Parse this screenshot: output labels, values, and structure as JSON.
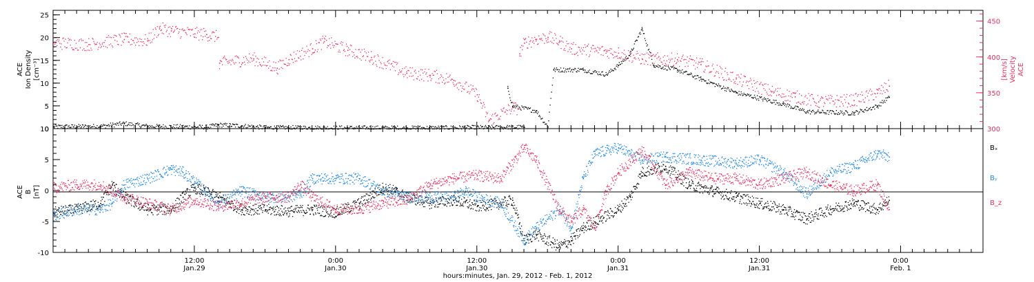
{
  "colors": {
    "black": "#000000",
    "pink": "#e8305c",
    "blue": "#1e88e5"
  },
  "x_axis": {
    "label": "hours:minutes, Jan. 29, 2012 - Feb. 1, 2012",
    "ticks": [
      {
        "h": 12,
        "time": "12:00",
        "day": "Jan.29"
      },
      {
        "h": 24,
        "time": "0:00",
        "day": "Jan.30"
      },
      {
        "h": 36,
        "time": "12:00",
        "day": "Jan.30"
      },
      {
        "h": 48,
        "time": "0:00",
        "day": "Jan.31"
      },
      {
        "h": 60,
        "time": "12:00",
        "day": "Jan.31"
      },
      {
        "h": 72,
        "time": "0:00",
        "day": "Feb. 1"
      }
    ]
  },
  "chart_data": [
    {
      "type": "scatter",
      "panel": "top",
      "ylabel_left": [
        "ACE",
        "Ion Density",
        "[cm⁻³]"
      ],
      "ylabel_right": [
        "ACE",
        "Velocity",
        "[km/s]"
      ],
      "xlim_hours": [
        0,
        79
      ],
      "ylim_left": [
        0,
        26
      ],
      "ylim_right": [
        300,
        465
      ],
      "left_ticks": [
        "0",
        "5",
        "10",
        "15",
        "20",
        "25"
      ],
      "right_ticks": [
        "300",
        "350",
        "400",
        "450"
      ],
      "series": [
        {
          "axis": "left",
          "color": "#000000",
          "points": [
            [
              0,
              0.5
            ],
            [
              4,
              0.6
            ],
            [
              6,
              1.2
            ],
            [
              8,
              0.6
            ],
            [
              13,
              0.4
            ],
            [
              14,
              0.9
            ],
            [
              16,
              0.7
            ],
            [
              18,
              0.3
            ],
            [
              30,
              0.2
            ],
            [
              40,
              0.4
            ],
            [
              38.5,
              0.5
            ],
            [
              38.6,
              9
            ],
            [
              39,
              5
            ],
            [
              41,
              4
            ],
            [
              42,
              0.5
            ],
            [
              42.5,
              13
            ],
            [
              45,
              13
            ],
            [
              47,
              12
            ],
            [
              48,
              14
            ],
            [
              49,
              16.5
            ],
            [
              50,
              22
            ],
            [
              51,
              14
            ],
            [
              53,
              13
            ],
            [
              55,
              11
            ],
            [
              58,
              8
            ],
            [
              62,
              5.5
            ],
            [
              64,
              3.8
            ],
            [
              68,
              3.5
            ],
            [
              70,
              5
            ],
            [
              71,
              7
            ]
          ]
        },
        {
          "axis": "right",
          "color": "#e8305c",
          "points": [
            [
              0,
              420
            ],
            [
              3,
              418
            ],
            [
              6,
              425
            ],
            [
              8,
              423
            ],
            [
              9,
              440
            ],
            [
              10,
              437
            ],
            [
              12,
              433
            ],
            [
              13,
              432
            ],
            [
              14,
              428
            ],
            [
              14.1,
              392
            ],
            [
              17,
              398
            ],
            [
              19,
              385
            ],
            [
              20,
              397
            ],
            [
              22,
              412
            ],
            [
              23,
              422
            ],
            [
              25,
              410
            ],
            [
              27,
              400
            ],
            [
              30,
              378
            ],
            [
              32,
              375
            ],
            [
              34,
              368
            ],
            [
              36,
              348
            ],
            [
              37,
              312
            ],
            [
              39,
              330
            ],
            [
              39.5,
              328
            ],
            [
              39.6,
              405
            ],
            [
              40,
              420
            ],
            [
              41,
              425
            ],
            [
              42,
              428
            ],
            [
              43,
              422
            ],
            [
              44,
              412
            ],
            [
              47,
              408
            ],
            [
              48,
              406
            ],
            [
              50,
              398
            ],
            [
              53,
              397
            ],
            [
              55,
              390
            ],
            [
              58,
              370
            ],
            [
              61,
              352
            ],
            [
              63,
              345
            ],
            [
              65,
              338
            ],
            [
              68,
              340
            ],
            [
              70,
              350
            ],
            [
              71,
              360
            ]
          ]
        }
      ]
    },
    {
      "type": "scatter",
      "panel": "bottom",
      "ylabel_left": [
        "ACE",
        "B",
        "[nT]"
      ],
      "xlim_hours": [
        0,
        79
      ],
      "ylim": [
        -10,
        10
      ],
      "left_ticks": [
        "-10",
        "-5",
        "0",
        "5",
        "10"
      ],
      "series": [
        {
          "name": "Bₓ",
          "color": "#000000",
          "points": [
            [
              0,
              -3.5
            ],
            [
              2,
              -3
            ],
            [
              4,
              -2
            ],
            [
              5,
              1
            ],
            [
              6,
              -1
            ],
            [
              8,
              -3
            ],
            [
              10,
              -3
            ],
            [
              11,
              -1
            ],
            [
              12,
              0.5
            ],
            [
              14,
              -1
            ],
            [
              16,
              -3
            ],
            [
              18,
              -3
            ],
            [
              20,
              -3.3
            ],
            [
              22,
              -3
            ],
            [
              24,
              -3.5
            ],
            [
              26,
              -2
            ],
            [
              28,
              0.5
            ],
            [
              29,
              0
            ],
            [
              30,
              -1
            ],
            [
              32,
              -2
            ],
            [
              34,
              -1.5
            ],
            [
              36,
              -2.5
            ],
            [
              38,
              -2
            ],
            [
              39,
              -1.5
            ],
            [
              40,
              -8
            ],
            [
              41,
              -7
            ],
            [
              43,
              -9
            ],
            [
              44,
              -8
            ],
            [
              45,
              -6
            ],
            [
              46,
              -5
            ],
            [
              48,
              -3
            ],
            [
              49,
              -1
            ],
            [
              50,
              3
            ],
            [
              52,
              4
            ],
            [
              54,
              1
            ],
            [
              56,
              0
            ],
            [
              58,
              -1
            ],
            [
              60,
              -2
            ],
            [
              62,
              -3
            ],
            [
              64,
              -4.5
            ],
            [
              66,
              -3
            ],
            [
              68,
              -2
            ],
            [
              70,
              -3
            ],
            [
              71,
              -1.5
            ]
          ]
        },
        {
          "name": "Bᵧ",
          "color": "#1e88e5",
          "points": [
            [
              0,
              -4
            ],
            [
              2,
              -3
            ],
            [
              4,
              -3
            ],
            [
              5,
              -2
            ],
            [
              6,
              1
            ],
            [
              8,
              2
            ],
            [
              10,
              3.5
            ],
            [
              11,
              3
            ],
            [
              12,
              1.5
            ],
            [
              14,
              -2
            ],
            [
              16,
              0
            ],
            [
              18,
              -1
            ],
            [
              20,
              -1
            ],
            [
              21,
              -0.5
            ],
            [
              22,
              2
            ],
            [
              24,
              2
            ],
            [
              26,
              2
            ],
            [
              28,
              0
            ],
            [
              30,
              -1
            ],
            [
              32,
              -1
            ],
            [
              34,
              -1
            ],
            [
              35,
              0
            ],
            [
              36,
              -1
            ],
            [
              38,
              -2
            ],
            [
              40,
              -8
            ],
            [
              41,
              -6
            ],
            [
              43,
              -3
            ],
            [
              44,
              -6
            ],
            [
              45,
              2
            ],
            [
              46,
              6
            ],
            [
              47,
              6.5
            ],
            [
              48,
              7
            ],
            [
              49,
              6
            ],
            [
              50,
              5
            ],
            [
              52,
              5.5
            ],
            [
              55,
              5
            ],
            [
              58,
              4.5
            ],
            [
              60,
              5
            ],
            [
              62,
              3
            ],
            [
              64,
              -0.5
            ],
            [
              66,
              3
            ],
            [
              68,
              4
            ],
            [
              70,
              6
            ],
            [
              71,
              5.5
            ]
          ]
        },
        {
          "name": "B_z",
          "color": "#e8305c",
          "points": [
            [
              0,
              0.5
            ],
            [
              2,
              1
            ],
            [
              4,
              1
            ],
            [
              6,
              -1
            ],
            [
              8,
              -2
            ],
            [
              10,
              -3
            ],
            [
              12,
              -1.5
            ],
            [
              14,
              -2.5
            ],
            [
              16,
              -2
            ],
            [
              18,
              -1
            ],
            [
              20,
              -1
            ],
            [
              21,
              1
            ],
            [
              22,
              -1
            ],
            [
              24,
              -3
            ],
            [
              26,
              -3
            ],
            [
              28,
              -2
            ],
            [
              30,
              -1.5
            ],
            [
              32,
              1
            ],
            [
              34,
              2
            ],
            [
              36,
              2.5
            ],
            [
              38,
              2
            ],
            [
              40,
              7
            ],
            [
              41,
              5
            ],
            [
              43,
              -3
            ],
            [
              44,
              -5
            ],
            [
              45,
              -3
            ],
            [
              46,
              -6
            ],
            [
              47,
              0
            ],
            [
              48,
              3
            ],
            [
              50,
              6.5
            ],
            [
              51,
              4
            ],
            [
              52,
              1
            ],
            [
              54,
              3
            ],
            [
              56,
              2
            ],
            [
              58,
              2
            ],
            [
              60,
              1
            ],
            [
              62,
              2
            ],
            [
              64,
              3
            ],
            [
              66,
              1
            ],
            [
              68,
              0
            ],
            [
              70,
              1
            ],
            [
              71,
              -3
            ]
          ]
        }
      ]
    }
  ]
}
